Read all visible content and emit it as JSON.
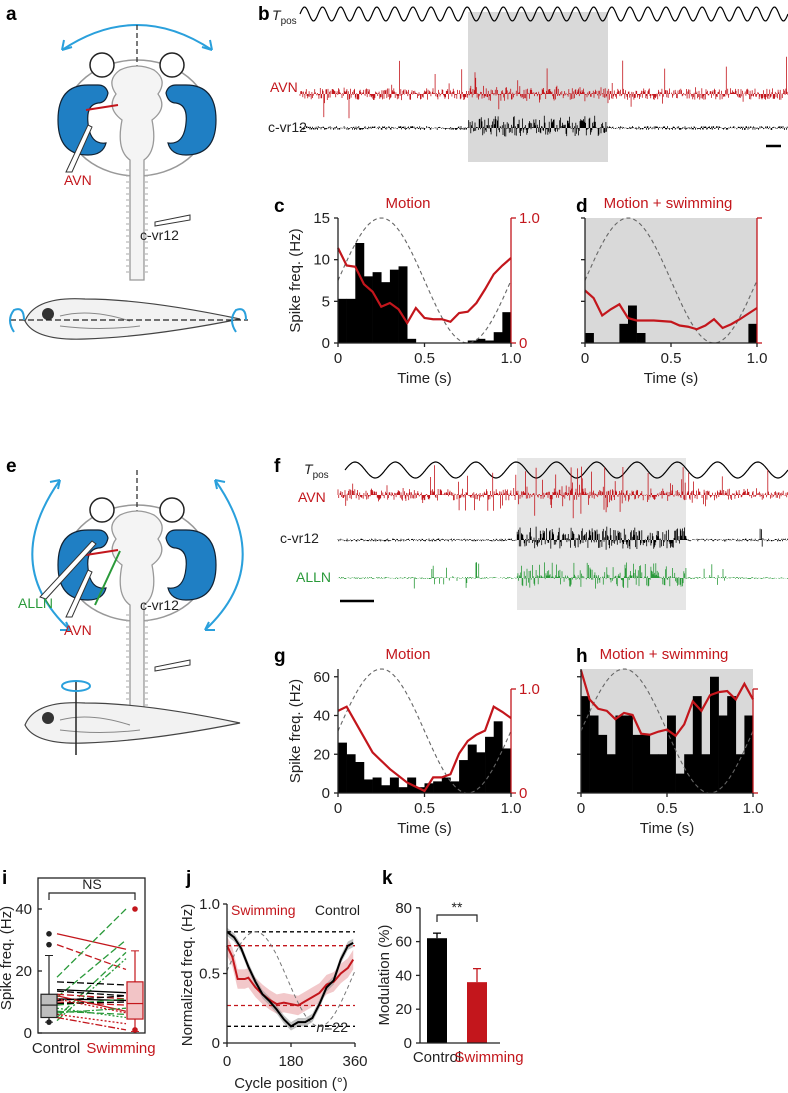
{
  "colors": {
    "avn": "#c3161c",
    "ear": "#1f7fc4",
    "arrow": "#2aa0dc",
    "alln": "#2a9a3a",
    "shade": "#d9d9d9",
    "black": "#000000",
    "pink": "#e9a3a7"
  },
  "panel_labels": {
    "a": "a",
    "b": "b",
    "c": "c",
    "d": "d",
    "e": "e",
    "f": "f",
    "g": "g",
    "h": "h",
    "i": "i",
    "j": "j",
    "k": "k"
  },
  "schematic_a": {
    "avn": "AVN",
    "cvr12": "c-vr12"
  },
  "schematic_e": {
    "avn": "AVN",
    "alln": "ALLN",
    "cvr12": "c-vr12"
  },
  "recording_b": {
    "tpos_main": "T",
    "tpos_sub": "pos",
    "avn": "AVN",
    "cvr12": "c-vr12"
  },
  "recording_f": {
    "tpos_main": "T",
    "tpos_sub": "pos",
    "avn": "AVN",
    "cvr12": "c-vr12",
    "alln": "ALLN"
  },
  "chart_data": [
    {
      "id": "c",
      "type": "bar",
      "title": "Motion",
      "xlabel": "Time (s)",
      "ylabel": "Spike freq. (Hz)",
      "xlim": [
        0,
        1
      ],
      "ylim": [
        0,
        15
      ],
      "xticks": [
        "0",
        "0.5",
        "1.0"
      ],
      "yticks": [
        "0",
        "5",
        "10",
        "15"
      ],
      "y2ticks": [
        "0",
        "1.0"
      ],
      "y2lim": [
        0,
        1
      ],
      "bin_width": 0.05,
      "values": [
        5.3,
        5.3,
        12,
        8,
        8.5,
        7.3,
        8.8,
        9.2,
        0.5,
        0,
        0,
        0,
        0,
        0,
        0,
        0.3,
        0.5,
        0.3,
        1.3,
        3.7
      ],
      "normalized_line": {
        "x": [
          0,
          0.05,
          0.1,
          0.15,
          0.2,
          0.25,
          0.3,
          0.35,
          0.4,
          0.45,
          0.5,
          0.55,
          0.6,
          0.65,
          0.7,
          0.75,
          0.8,
          0.85,
          0.9,
          0.95,
          1.0
        ],
        "y": [
          0.76,
          0.62,
          0.61,
          0.47,
          0.41,
          0.29,
          0.32,
          0.27,
          0.16,
          0.28,
          0.2,
          0.19,
          0.19,
          0.17,
          0.24,
          0.25,
          0.32,
          0.43,
          0.55,
          0.62,
          0.68
        ]
      },
      "stimulus": "sine",
      "shaded": false
    },
    {
      "id": "d",
      "type": "bar",
      "title": "Motion + swimming",
      "xlabel": "Time (s)",
      "ylabel": "",
      "xlim": [
        0,
        1
      ],
      "ylim": [
        0,
        15
      ],
      "xticks": [
        "0",
        "0.5",
        "1.0"
      ],
      "yticks": [],
      "y2ticks": [],
      "y2lim": [
        0,
        1
      ],
      "bin_width": 0.05,
      "values": [
        1.2,
        0,
        0,
        0,
        2.3,
        4.5,
        1.2,
        0,
        0,
        0,
        0,
        0,
        0,
        0,
        0,
        0,
        0,
        0,
        0,
        2.3
      ],
      "normalized_line": {
        "x": [
          0,
          0.05,
          0.1,
          0.15,
          0.2,
          0.25,
          0.3,
          0.4,
          0.5,
          0.55,
          0.6,
          0.65,
          0.7,
          0.75,
          0.8,
          0.85,
          0.9,
          1.0
        ],
        "y": [
          0.42,
          0.36,
          0.22,
          0.27,
          0.31,
          0.2,
          0.18,
          0.18,
          0.17,
          0.14,
          0.13,
          0.11,
          0.14,
          0.19,
          0.12,
          0.15,
          0.19,
          0.28
        ]
      },
      "stimulus": "sine",
      "shaded": true
    },
    {
      "id": "g",
      "type": "bar",
      "title": "Motion",
      "xlabel": "Time (s)",
      "ylabel": "Spike freq. (Hz)",
      "xlim": [
        0,
        1
      ],
      "ylim": [
        0,
        64
      ],
      "xticks": [
        "0",
        "0.5",
        "1.0"
      ],
      "yticks": [
        "0",
        "20",
        "40",
        "60"
      ],
      "y2ticks": [
        "0",
        "1.0"
      ],
      "y2lim": [
        0,
        1
      ],
      "bin_width": 0.05,
      "values": [
        26,
        20,
        16,
        7,
        8,
        4,
        8,
        3,
        8,
        3,
        5,
        6,
        8,
        6,
        17,
        25,
        21,
        29,
        37,
        23
      ],
      "normalized_line": {
        "x": [
          0,
          0.05,
          0.2,
          0.3,
          0.4,
          0.5,
          0.55,
          0.6,
          0.65,
          0.7,
          0.75,
          0.8,
          0.85,
          0.9,
          0.95,
          1.0
        ],
        "y": [
          0.79,
          0.83,
          0.39,
          0.23,
          0.1,
          0.02,
          0.15,
          0.15,
          0.18,
          0.38,
          0.5,
          0.56,
          0.6,
          0.83,
          0.78,
          0.72
        ]
      },
      "stimulus": "sine",
      "shaded": false
    },
    {
      "id": "h",
      "type": "bar",
      "title": "Motion + swimming",
      "xlabel": "Time (s)",
      "ylabel": "",
      "xlim": [
        0,
        1
      ],
      "ylim": [
        0,
        64
      ],
      "xticks": [
        "0",
        "0.5",
        "1.0"
      ],
      "yticks": [],
      "y2ticks": [],
      "y2lim": [
        0,
        1
      ],
      "bin_width": 0.05,
      "values": [
        50,
        40,
        30,
        20,
        40,
        40,
        30,
        30,
        20,
        20,
        40,
        10,
        20,
        50,
        20,
        60,
        40,
        50,
        20,
        40
      ],
      "normalized_line": {
        "x": [
          0,
          0.05,
          0.1,
          0.15,
          0.2,
          0.25,
          0.3,
          0.35,
          0.4,
          0.45,
          0.5,
          0.55,
          0.6,
          0.65,
          0.7,
          0.75,
          0.8,
          0.85,
          0.9,
          0.95,
          1.0
        ],
        "y": [
          1.18,
          0.9,
          0.81,
          0.79,
          0.71,
          0.77,
          0.75,
          0.57,
          0.56,
          0.59,
          0.61,
          0.55,
          0.66,
          0.88,
          0.79,
          0.94,
          0.97,
          0.98,
          0.9,
          1.05,
          0.9
        ]
      },
      "stimulus": "sine",
      "shaded": true
    },
    {
      "id": "i",
      "type": "box",
      "ylabel": "Spike freq. (Hz)",
      "ylim": [
        0,
        50
      ],
      "yticks": [
        "0",
        "20",
        "40"
      ],
      "categories": [
        "Control",
        "Swimming"
      ],
      "significance": "NS",
      "boxes": [
        {
          "q1": 5,
          "median": 9,
          "q3": 12.5,
          "whisker_low": 3.5,
          "whisker_high": 25,
          "outliers": [
            28.5,
            32,
            3.5
          ]
        },
        {
          "q1": 4.5,
          "median": 9.5,
          "q3": 16.5,
          "whisker_low": 0.5,
          "whisker_high": 26.5,
          "outliers": [
            40,
            1
          ]
        }
      ],
      "paired_lines": [
        {
          "control": 32,
          "swimming": 27,
          "color": "red",
          "style": "solid"
        },
        {
          "control": 28.5,
          "swimming": 20.5,
          "color": "red",
          "style": "dashed"
        },
        {
          "control": 18,
          "swimming": 40,
          "color": "green",
          "style": "dashed"
        },
        {
          "control": 11.5,
          "swimming": 30,
          "color": "green",
          "style": "dashed"
        },
        {
          "control": 5,
          "swimming": 26,
          "color": "green",
          "style": "dashed"
        },
        {
          "control": 4,
          "swimming": 24,
          "color": "green",
          "style": "dashdot"
        },
        {
          "control": 16.5,
          "swimming": 15.5,
          "color": "black",
          "style": "dashed"
        },
        {
          "control": 14,
          "swimming": 13,
          "color": "black",
          "style": "solid"
        },
        {
          "control": 13.5,
          "swimming": 12,
          "color": "black",
          "style": "dashed"
        },
        {
          "control": 12.5,
          "swimming": 11,
          "color": "red",
          "style": "dashed"
        },
        {
          "control": 11,
          "swimming": 10.5,
          "color": "black",
          "style": "solid"
        },
        {
          "control": 10,
          "swimming": 9,
          "color": "red",
          "style": "dashed"
        },
        {
          "control": 9,
          "swimming": 11,
          "color": "green",
          "style": "dashed"
        },
        {
          "control": 9.5,
          "swimming": 10,
          "color": "black",
          "style": "dashed"
        },
        {
          "control": 12,
          "swimming": 7,
          "color": "red",
          "style": "solid"
        },
        {
          "control": 7,
          "swimming": 6,
          "color": "green",
          "style": "dashed"
        },
        {
          "control": 6,
          "swimming": 3,
          "color": "red",
          "style": "dotted"
        },
        {
          "control": 5,
          "swimming": 1,
          "color": "red",
          "style": "dashdot"
        },
        {
          "control": 8,
          "swimming": 5,
          "color": "green",
          "style": "dotted"
        },
        {
          "control": 10.5,
          "swimming": 12,
          "color": "black",
          "style": "dashed"
        },
        {
          "control": 6.5,
          "swimming": 8,
          "color": "green",
          "style": "dashdot"
        },
        {
          "control": 11,
          "swimming": 6.5,
          "color": "red",
          "style": "dotted"
        }
      ]
    },
    {
      "id": "j",
      "type": "line",
      "xlabel": "Cycle position (°)",
      "ylabel": "Normalized freq. (Hz)",
      "xlim": [
        0,
        360
      ],
      "ylim": [
        0,
        1
      ],
      "xticks": [
        "0",
        "180",
        "360"
      ],
      "yticks": [
        "0",
        "0.5",
        "1.0"
      ],
      "annotation": {
        "n_italic": "n",
        "n_value": "=22"
      },
      "series": [
        {
          "name": "Control",
          "color": "black",
          "band": 0.03,
          "x": [
            0,
            20,
            40,
            60,
            80,
            100,
            120,
            140,
            160,
            180,
            200,
            220,
            240,
            260,
            280,
            300,
            320,
            340,
            355
          ],
          "y": [
            0.8,
            0.76,
            0.68,
            0.55,
            0.44,
            0.35,
            0.3,
            0.24,
            0.17,
            0.12,
            0.15,
            0.15,
            0.18,
            0.28,
            0.4,
            0.45,
            0.6,
            0.7,
            0.72
          ],
          "max_line": 0.8,
          "min_line": 0.12
        },
        {
          "name": "Swimming",
          "color": "red",
          "band": 0.07,
          "x": [
            0,
            15,
            30,
            50,
            60,
            80,
            100,
            120,
            140,
            160,
            180,
            200,
            220,
            240,
            260,
            280,
            300,
            320,
            340,
            355
          ],
          "y": [
            0.7,
            0.62,
            0.46,
            0.46,
            0.47,
            0.4,
            0.35,
            0.31,
            0.28,
            0.29,
            0.28,
            0.27,
            0.3,
            0.33,
            0.36,
            0.42,
            0.44,
            0.5,
            0.54,
            0.6
          ],
          "max_line": 0.7,
          "min_line": 0.27
        }
      ],
      "stimulus": "sine"
    },
    {
      "id": "k",
      "type": "bar",
      "ylabel": "Modulation (%)",
      "ylim": [
        0,
        80
      ],
      "yticks": [
        "0",
        "20",
        "40",
        "60",
        "80"
      ],
      "categories": [
        "Control",
        "Swimming"
      ],
      "values": [
        62,
        36
      ],
      "errors": [
        3,
        8
      ],
      "significance": "**"
    }
  ]
}
